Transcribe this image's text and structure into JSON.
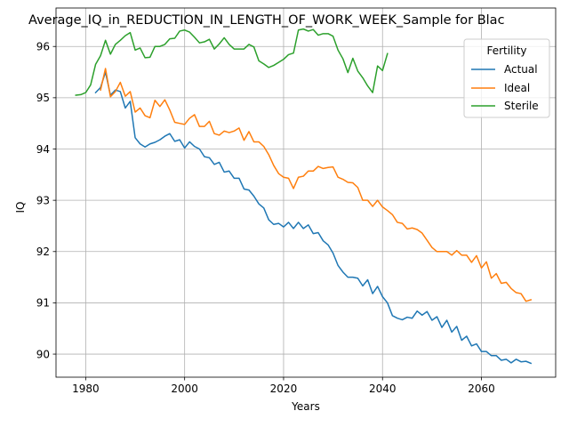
{
  "chart_data": {
    "type": "line",
    "title": "Average_IQ_in_REDUCTION_IN_LENGTH_OF_WORK_WEEK_Sample for Blac",
    "xlabel": "Years",
    "ylabel": "IQ",
    "xlim": [
      1974,
      2075
    ],
    "ylim": [
      89.55,
      96.75
    ],
    "xticks": [
      1980,
      2000,
      2020,
      2040,
      2060
    ],
    "yticks": [
      90,
      91,
      92,
      93,
      94,
      95,
      96
    ],
    "grid": true,
    "legend": {
      "title": "Fertility",
      "placement": "top-right"
    },
    "series": [
      {
        "name": "Actual",
        "color": "#1f77b4",
        "x": [
          1982,
          1983,
          1984,
          1985,
          1986,
          1987,
          1988,
          1989,
          1990,
          1991,
          1992,
          1993,
          1994,
          1995,
          1996,
          1997,
          1998,
          1999,
          2000,
          2001,
          2002,
          2003,
          2004,
          2005,
          2006,
          2007,
          2008,
          2009,
          2010,
          2011,
          2012,
          2013,
          2014,
          2015,
          2016,
          2017,
          2018,
          2019,
          2020,
          2021,
          2022,
          2023,
          2024,
          2025,
          2026,
          2027,
          2028,
          2029,
          2030,
          2031,
          2032,
          2033,
          2034,
          2035,
          2036,
          2037,
          2038,
          2039,
          2040,
          2041,
          2042,
          2043,
          2044,
          2045,
          2046,
          2047,
          2048,
          2049,
          2050,
          2051,
          2052,
          2053,
          2054,
          2055,
          2056,
          2057,
          2058,
          2059,
          2060,
          2061,
          2062,
          2063,
          2064,
          2065,
          2066,
          2067,
          2068,
          2069,
          2070
        ],
        "values": [
          95.1,
          95.2,
          95.5,
          95.05,
          95.15,
          95.12,
          94.8,
          94.93,
          94.22,
          94.1,
          94.04,
          94.1,
          94.13,
          94.18,
          94.25,
          94.3,
          94.15,
          94.18,
          94.02,
          94.14,
          94.05,
          94.0,
          93.85,
          93.83,
          93.7,
          93.74,
          93.55,
          93.57,
          93.43,
          93.43,
          93.22,
          93.2,
          93.08,
          92.93,
          92.85,
          92.62,
          92.53,
          92.55,
          92.48,
          92.57,
          92.45,
          92.57,
          92.45,
          92.52,
          92.35,
          92.37,
          92.21,
          92.13,
          91.97,
          91.73,
          91.6,
          91.5,
          91.5,
          91.48,
          91.33,
          91.45,
          91.18,
          91.32,
          91.12,
          91.0,
          90.75,
          90.7,
          90.67,
          90.72,
          90.7,
          90.84,
          90.76,
          90.83,
          90.66,
          90.73,
          90.52,
          90.66,
          90.43,
          90.54,
          90.27,
          90.35,
          90.16,
          90.2,
          90.05,
          90.05,
          89.97,
          89.97,
          89.88,
          89.9,
          89.83,
          89.9,
          89.85,
          89.86,
          89.82
        ]
      },
      {
        "name": "Ideal",
        "color": "#ff7f0e",
        "x": [
          1983,
          1984,
          1985,
          1986,
          1987,
          1988,
          1989,
          1990,
          1991,
          1992,
          1993,
          1994,
          1995,
          1996,
          1997,
          1998,
          1999,
          2000,
          2001,
          2002,
          2003,
          2004,
          2005,
          2006,
          2007,
          2008,
          2009,
          2010,
          2011,
          2012,
          2013,
          2014,
          2015,
          2016,
          2017,
          2018,
          2019,
          2020,
          2021,
          2022,
          2023,
          2024,
          2025,
          2026,
          2027,
          2028,
          2029,
          2030,
          2031,
          2032,
          2033,
          2034,
          2035,
          2036,
          2037,
          2038,
          2039,
          2040,
          2041,
          2042,
          2043,
          2044,
          2045,
          2046,
          2047,
          2048,
          2049,
          2050,
          2051,
          2052,
          2053,
          2054,
          2055,
          2056,
          2057,
          2058,
          2059,
          2060,
          2061,
          2062,
          2063,
          2064,
          2065,
          2066,
          2067,
          2068,
          2069,
          2070
        ],
        "values": [
          95.15,
          95.57,
          95.02,
          95.12,
          95.3,
          95.03,
          95.12,
          94.72,
          94.8,
          94.65,
          94.61,
          94.95,
          94.83,
          94.96,
          94.76,
          94.52,
          94.5,
          94.48,
          94.6,
          94.67,
          94.44,
          94.44,
          94.54,
          94.3,
          94.27,
          94.35,
          94.32,
          94.35,
          94.41,
          94.17,
          94.34,
          94.14,
          94.14,
          94.05,
          93.89,
          93.68,
          93.52,
          93.45,
          93.43,
          93.23,
          93.45,
          93.47,
          93.57,
          93.57,
          93.66,
          93.62,
          93.64,
          93.65,
          93.45,
          93.41,
          93.35,
          93.34,
          93.25,
          93.0,
          93.0,
          92.88,
          93.0,
          92.87,
          92.8,
          92.72,
          92.57,
          92.55,
          92.44,
          92.46,
          92.43,
          92.36,
          92.22,
          92.08,
          92.0,
          92.0,
          92.0,
          91.93,
          92.02,
          91.93,
          91.93,
          91.79,
          91.92,
          91.68,
          91.8,
          91.48,
          91.57,
          91.38,
          91.4,
          91.28,
          91.2,
          91.18,
          91.03,
          91.06
        ]
      },
      {
        "name": "Sterile",
        "color": "#2ca02c",
        "x": [
          1978,
          1979,
          1980,
          1981,
          1982,
          1983,
          1984,
          1985,
          1986,
          1987,
          1988,
          1989,
          1990,
          1991,
          1992,
          1993,
          1994,
          1995,
          1996,
          1997,
          1998,
          1999,
          2000,
          2001,
          2002,
          2003,
          2004,
          2005,
          2006,
          2007,
          2008,
          2009,
          2010,
          2011,
          2012,
          2013,
          2014,
          2015,
          2016,
          2017,
          2018,
          2019,
          2020,
          2021,
          2022,
          2023,
          2024,
          2025,
          2026,
          2027,
          2028,
          2029,
          2030,
          2031,
          2032,
          2033,
          2034,
          2035,
          2036,
          2037,
          2038,
          2039,
          2040,
          2041
        ],
        "values": [
          95.05,
          95.06,
          95.1,
          95.25,
          95.65,
          95.82,
          96.12,
          95.85,
          96.04,
          96.12,
          96.21,
          96.27,
          95.93,
          95.97,
          95.78,
          95.79,
          96.0,
          96.0,
          96.04,
          96.15,
          96.16,
          96.3,
          96.32,
          96.28,
          96.18,
          96.07,
          96.09,
          96.14,
          95.95,
          96.05,
          96.17,
          96.04,
          95.95,
          95.95,
          95.95,
          96.04,
          95.99,
          95.72,
          95.66,
          95.59,
          95.63,
          95.69,
          95.75,
          95.84,
          95.87,
          96.32,
          96.34,
          96.3,
          96.33,
          96.22,
          96.25,
          96.25,
          96.2,
          95.93,
          95.76,
          95.49,
          95.77,
          95.52,
          95.39,
          95.23,
          95.1,
          95.62,
          95.53,
          95.86
        ]
      }
    ]
  }
}
